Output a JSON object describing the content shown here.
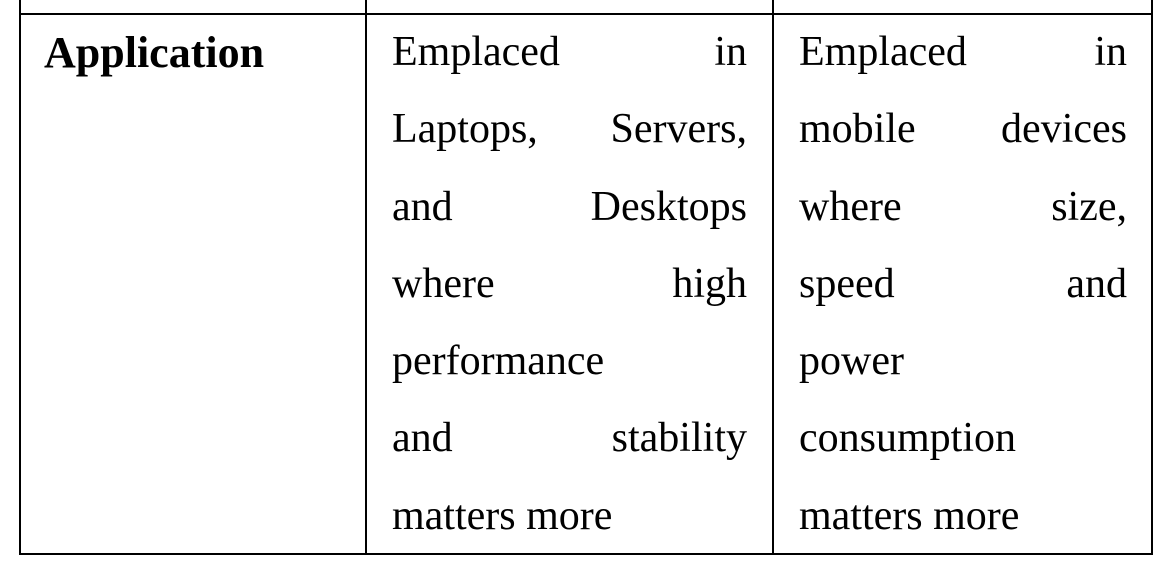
{
  "table": {
    "row": {
      "label": "Application",
      "col2_lines": [
        [
          "Emplaced",
          "in"
        ],
        [
          "Laptops,",
          "Servers,"
        ],
        [
          "and",
          "Desktops"
        ],
        [
          "where",
          "high"
        ],
        [
          "performance"
        ],
        [
          "and",
          "stability"
        ],
        [
          "matters more"
        ]
      ],
      "col3_lines": [
        [
          "Emplaced",
          "in"
        ],
        [
          "mobile",
          "devices"
        ],
        [
          "where",
          "size,"
        ],
        [
          "speed",
          "and"
        ],
        [
          "power"
        ],
        [
          "consumption"
        ],
        [
          "matters more"
        ]
      ]
    }
  }
}
